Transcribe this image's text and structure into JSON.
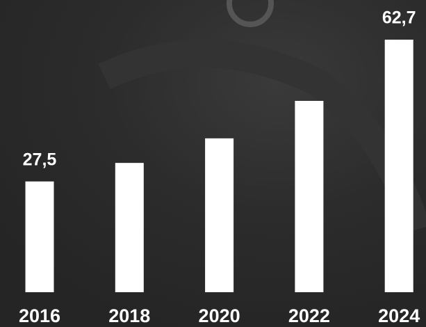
{
  "chart_data": {
    "type": "bar",
    "categories": [
      "2016",
      "2018",
      "2020",
      "2022",
      "2024"
    ],
    "values": [
      27.5,
      32.1,
      38.2,
      47.5,
      62.7
    ],
    "value_labels": [
      "27,5",
      null,
      null,
      null,
      "62,7"
    ],
    "color": "#ffffff"
  }
}
